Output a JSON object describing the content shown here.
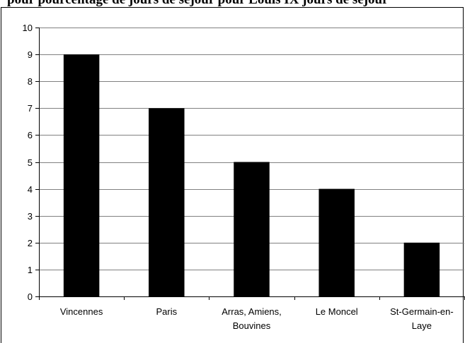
{
  "title": "pour pourcentage de jours de séjour pour Louis IX jours de séjour",
  "colors": {
    "bar": "#000000",
    "grid": "#808080",
    "axis": "#000000"
  },
  "chart_data": {
    "type": "bar",
    "title": "pour pourcentage de jours de séjour pour Louis IX jours de séjour",
    "categories": [
      [
        "Vincennes"
      ],
      [
        "Paris"
      ],
      [
        "Arras, Amiens,",
        "Bouvines"
      ],
      [
        "Le Moncel"
      ],
      [
        "St-Germain-en-",
        "Laye"
      ]
    ],
    "values": [
      9,
      7,
      5,
      4,
      2
    ],
    "xlabel": "",
    "ylabel": "",
    "ylim": [
      0,
      10
    ],
    "yticks": [
      "0",
      "1",
      "2",
      "3",
      "4",
      "5",
      "6",
      "7",
      "8",
      "9",
      "10"
    ],
    "grid": true,
    "legend": "none"
  }
}
